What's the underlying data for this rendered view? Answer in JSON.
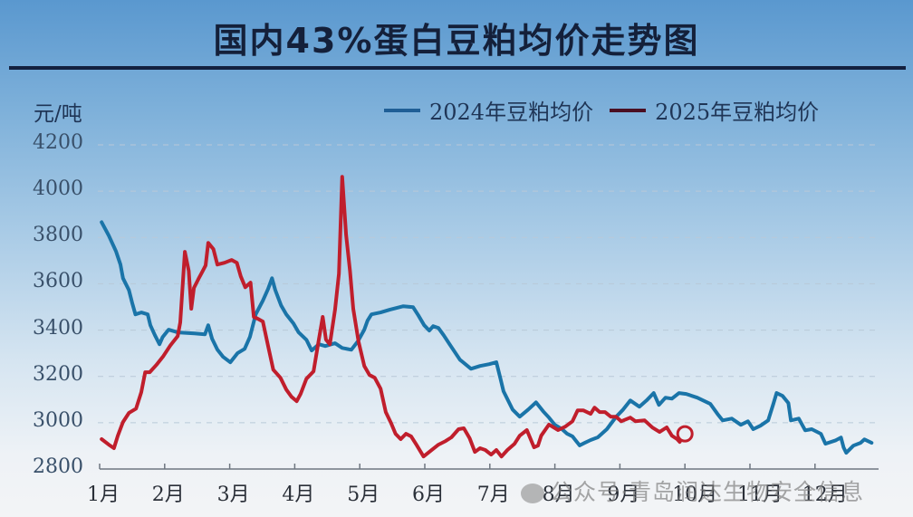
{
  "title": "国内43%蛋白豆粕均价走势图",
  "unit_label": "元/吨",
  "legend": [
    {
      "label": "2024年豆粕均价",
      "color": "#1f5e96"
    },
    {
      "label": "2025年豆粕均价",
      "color": "#4a0f22"
    }
  ],
  "watermark": "公众号·青岛润达生物安全信息",
  "colors": {
    "series_2024": "#1a74a8",
    "series_2025": "#c01e2c",
    "axis": "#6e7680",
    "grid": "#b9c9d8"
  },
  "chart_data": {
    "type": "line",
    "title": "国内43%蛋白豆粕均价走势图",
    "xlabel": "",
    "ylabel": "元/吨",
    "ylim": [
      2800,
      4200
    ],
    "yticks": [
      2800,
      3000,
      3200,
      3400,
      3600,
      3800,
      4000,
      4200
    ],
    "categories": [
      "1月",
      "2月",
      "3月",
      "4月",
      "5月",
      "6月",
      "7月",
      "8月",
      "9月",
      "10月",
      "11月",
      "12月"
    ],
    "grid": "horizontal dashed",
    "legend_position": "top-right",
    "series": [
      {
        "name": "2024年豆粕均价",
        "x_month": [
          1.03,
          1.14,
          1.25,
          1.32,
          1.36,
          1.45,
          1.5,
          1.55,
          1.64,
          1.74,
          1.78,
          1.85,
          1.92,
          1.97,
          2.06,
          2.2,
          2.46,
          2.62,
          2.67,
          2.73,
          2.81,
          2.9,
          3.01,
          3.12,
          3.23,
          3.31,
          3.4,
          3.51,
          3.59,
          3.65,
          3.7,
          3.79,
          3.87,
          3.98,
          4.06,
          4.18,
          4.26,
          4.37,
          4.47,
          4.62,
          4.73,
          4.87,
          4.97,
          5.07,
          5.12,
          5.18,
          5.32,
          5.46,
          5.67,
          5.82,
          5.9,
          5.99,
          6.07,
          6.13,
          6.21,
          6.29,
          6.4,
          6.54,
          6.71,
          6.85,
          6.99,
          7.1,
          7.16,
          7.21,
          7.35,
          7.46,
          7.59,
          7.71,
          7.82,
          7.91,
          8.0,
          8.11,
          8.19,
          8.27,
          8.38,
          8.46,
          8.55,
          8.66,
          8.8,
          8.94,
          9.05,
          9.16,
          9.3,
          9.41,
          9.52,
          9.6,
          9.7,
          9.8,
          9.91,
          10.02,
          10.19,
          10.39,
          10.5,
          10.58,
          10.72,
          10.86,
          10.97,
          11.05,
          11.16,
          11.28,
          11.36,
          11.41,
          11.5,
          11.59,
          11.63,
          11.75,
          11.85,
          11.95,
          12.09,
          12.16,
          12.32,
          12.4,
          12.44,
          12.48,
          12.59,
          12.7,
          12.76,
          12.87
        ],
        "values": [
          3866,
          3808,
          3741,
          3683,
          3624,
          3573,
          3518,
          3468,
          3476,
          3468,
          3421,
          3378,
          3339,
          3370,
          3402,
          3390,
          3386,
          3382,
          3421,
          3362,
          3316,
          3284,
          3261,
          3300,
          3319,
          3370,
          3468,
          3527,
          3578,
          3624,
          3573,
          3507,
          3468,
          3429,
          3390,
          3358,
          3312,
          3339,
          3331,
          3343,
          3323,
          3315,
          3351,
          3402,
          3441,
          3468,
          3476,
          3488,
          3503,
          3499,
          3464,
          3421,
          3398,
          3417,
          3409,
          3378,
          3331,
          3272,
          3233,
          3245,
          3253,
          3261,
          3194,
          3136,
          3057,
          3026,
          3057,
          3088,
          3049,
          3022,
          2991,
          2972,
          2952,
          2941,
          2902,
          2913,
          2925,
          2937,
          2972,
          3025,
          3057,
          3096,
          3069,
          3096,
          3128,
          3077,
          3108,
          3104,
          3128,
          3124,
          3108,
          3081,
          3038,
          3010,
          3018,
          2991,
          3006,
          2972,
          2987,
          3010,
          3081,
          3128,
          3116,
          3085,
          3010,
          3018,
          2967,
          2972,
          2952,
          2909,
          2924,
          2936,
          2893,
          2870,
          2901,
          2913,
          2928,
          2913
        ]
      },
      {
        "name": "2025年豆粕均价",
        "x_month": [
          1.03,
          1.14,
          1.22,
          1.28,
          1.36,
          1.45,
          1.56,
          1.64,
          1.7,
          1.77,
          1.87,
          1.98,
          2.09,
          2.2,
          2.24,
          2.31,
          2.37,
          2.41,
          2.45,
          2.52,
          2.58,
          2.63,
          2.67,
          2.75,
          2.81,
          2.92,
          3.03,
          3.11,
          3.17,
          3.24,
          3.32,
          3.37,
          3.43,
          3.51,
          3.59,
          3.67,
          3.78,
          3.87,
          3.95,
          4.03,
          4.09,
          4.18,
          4.29,
          4.37,
          4.43,
          4.48,
          4.54,
          4.62,
          4.68,
          4.73,
          4.79,
          4.85,
          4.9,
          4.98,
          5.07,
          5.15,
          5.23,
          5.32,
          5.4,
          5.48,
          5.55,
          5.63,
          5.71,
          5.79,
          5.87,
          5.98,
          6.1,
          6.21,
          6.32,
          6.41,
          6.52,
          6.6,
          6.69,
          6.77,
          6.85,
          6.93,
          7.02,
          7.1,
          7.18,
          7.27,
          7.38,
          7.46,
          7.57,
          7.68,
          7.74,
          7.79,
          7.91,
          8.05,
          8.16,
          8.27,
          8.35,
          8.44,
          8.55,
          8.61,
          8.69,
          8.77,
          8.86,
          8.94,
          9.02,
          9.16,
          9.24,
          9.38,
          9.5,
          9.61,
          9.72,
          9.8,
          9.88,
          9.92
        ],
        "values": [
          2929,
          2905,
          2890,
          2944,
          3003,
          3042,
          3061,
          3132,
          3218,
          3218,
          3249,
          3288,
          3335,
          3374,
          3433,
          3738,
          3656,
          3492,
          3582,
          3621,
          3652,
          3679,
          3777,
          3750,
          3683,
          3691,
          3703,
          3691,
          3632,
          3585,
          3605,
          3457,
          3449,
          3437,
          3331,
          3229,
          3194,
          3143,
          3112,
          3093,
          3124,
          3190,
          3222,
          3359,
          3457,
          3359,
          3339,
          3488,
          3644,
          4062,
          3812,
          3656,
          3492,
          3351,
          3245,
          3206,
          3194,
          3147,
          3046,
          2999,
          2952,
          2929,
          2952,
          2941,
          2905,
          2854,
          2881,
          2905,
          2921,
          2937,
          2972,
          2976,
          2933,
          2874,
          2890,
          2882,
          2862,
          2882,
          2854,
          2882,
          2909,
          2944,
          2968,
          2894,
          2901,
          2944,
          2992,
          2968,
          2983,
          3006,
          3053,
          3053,
          3038,
          3065,
          3046,
          3046,
          3026,
          3026,
          3006,
          3022,
          3006,
          3010,
          2979,
          2960,
          2980,
          2944,
          2929,
          2917
        ]
      }
    ],
    "annotations": [
      {
        "type": "circle-marker",
        "series": "2025年豆粕均价",
        "x_month": 10.0,
        "value": 2952
      }
    ]
  }
}
